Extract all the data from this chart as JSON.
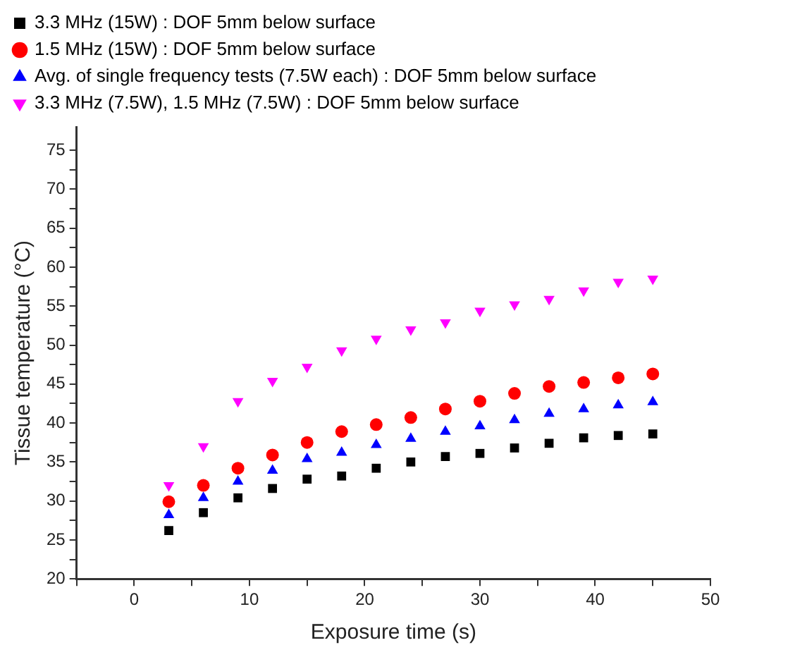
{
  "chart_data": {
    "type": "scatter",
    "xlabel": "Exposure time (s)",
    "ylabel": "Tissue temperature (°C)",
    "x": [
      3,
      6,
      9,
      12,
      15,
      18,
      21,
      24,
      27,
      30,
      33,
      36,
      39,
      42,
      45
    ],
    "xlim": [
      -5,
      50
    ],
    "xticks": [
      {
        "value": -5,
        "label": null
      },
      0,
      {
        "value": 5,
        "label": null
      },
      10,
      {
        "value": 15,
        "label": null
      },
      20,
      {
        "value": 25,
        "label": null
      },
      30,
      {
        "value": 35,
        "label": null
      },
      40,
      {
        "value": 45,
        "label": null
      },
      50
    ],
    "ylim": [
      20,
      78
    ],
    "yticks": [
      20,
      {
        "value": 22.5,
        "label": null
      },
      25,
      {
        "value": 27.5,
        "label": null
      },
      30,
      {
        "value": 32.5,
        "label": null
      },
      35,
      {
        "value": 37.5,
        "label": null
      },
      40,
      {
        "value": 42.5,
        "label": null
      },
      45,
      {
        "value": 47.5,
        "label": null
      },
      50,
      {
        "value": 52.5,
        "label": null
      },
      55,
      {
        "value": 57.5,
        "label": null
      },
      60,
      {
        "value": 62.5,
        "label": null
      },
      65,
      {
        "value": 67.5,
        "label": null
      },
      70,
      {
        "value": 72.5,
        "label": null
      },
      75
    ],
    "grid": false,
    "legend": "top",
    "series": [
      {
        "name": "3.3 MHz (15W) : DOF 5mm below surface",
        "color": "#000000",
        "marker": "square",
        "values": [
          26.2,
          28.5,
          30.4,
          31.6,
          32.8,
          33.2,
          34.2,
          35.0,
          35.7,
          36.1,
          36.8,
          37.4,
          38.1,
          38.4,
          38.6
        ]
      },
      {
        "name": "1.5 MHz (15W) : DOF 5mm below surface",
        "color": "#ff0000",
        "marker": "circle",
        "values": [
          29.9,
          32.0,
          34.2,
          35.9,
          37.5,
          38.9,
          39.8,
          40.7,
          41.8,
          42.8,
          43.8,
          44.7,
          45.2,
          45.8,
          46.3
        ]
      },
      {
        "name": "Avg. of single frequency tests (7.5W each) : DOF 5mm below surface",
        "color": "#0000ff",
        "marker": "triangle",
        "values": [
          28.2,
          30.4,
          32.5,
          33.9,
          35.4,
          36.2,
          37.2,
          38.0,
          38.9,
          39.6,
          40.4,
          41.2,
          41.8,
          42.3,
          42.7
        ]
      },
      {
        "name": "3.3 MHz (7.5W), 1.5 MHz (7.5W) : DOF 5mm below surface",
        "color": "#ff00ff",
        "marker": "triangle-down",
        "values": [
          32.0,
          37.0,
          42.8,
          45.4,
          47.2,
          49.3,
          50.8,
          52.0,
          52.9,
          54.4,
          55.2,
          55.9,
          57.0,
          58.1,
          58.5
        ]
      }
    ]
  }
}
